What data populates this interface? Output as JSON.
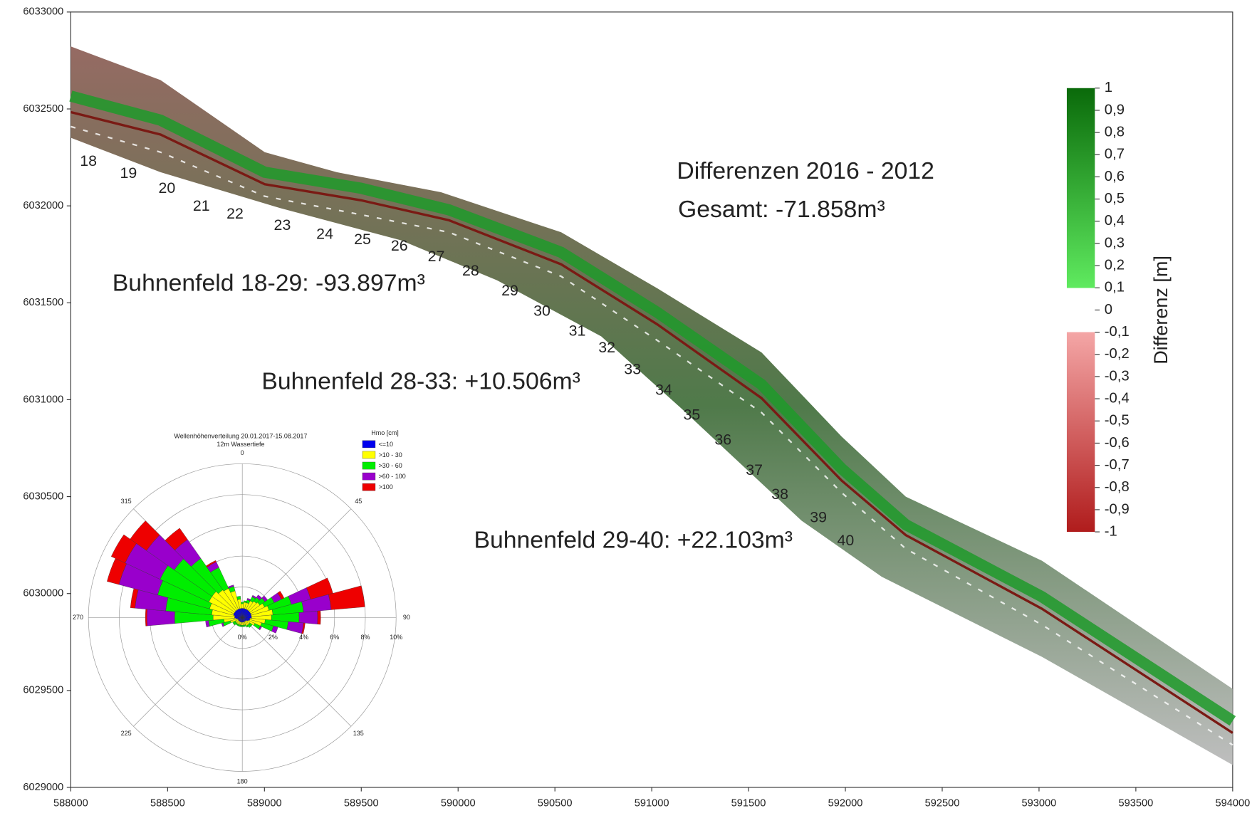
{
  "map": {
    "xlim": [
      588000,
      594000
    ],
    "ylim": [
      6029000,
      6033000
    ],
    "xticks": [
      588000,
      588500,
      589000,
      589500,
      590000,
      590500,
      591000,
      591500,
      592000,
      592500,
      593000,
      593500,
      594000
    ],
    "yticks": [
      6029000,
      6029500,
      6030000,
      6030500,
      6031000,
      6031500,
      6032000,
      6032500,
      6033000
    ],
    "title": "Differenzen 2016 - 2012",
    "total": "Gesamt: -71.858m³",
    "annotations": [
      "Buhnenfeld 18-29: -93.897m³",
      "Buhnenfeld 28-33: +10.506m³",
      "Buhnenfeld 29-40: +22.103m³"
    ],
    "groyne_labels": [
      18,
      19,
      20,
      21,
      22,
      23,
      24,
      25,
      26,
      27,
      28,
      29,
      30,
      31,
      32,
      33,
      34,
      35,
      36,
      37,
      38,
      39,
      40
    ],
    "colorbar": {
      "label": "Differenz [m]",
      "lim": [
        -1,
        1
      ],
      "ticks": [
        1,
        {
          "value": 0.9,
          "label": "0,9"
        },
        {
          "value": 0.8,
          "label": "0,8"
        },
        {
          "value": 0.7,
          "label": "0,7"
        },
        {
          "value": 0.6,
          "label": "0,6"
        },
        {
          "value": 0.5,
          "label": "0,5"
        },
        {
          "value": 0.4,
          "label": "0,4"
        },
        {
          "value": 0.3,
          "label": "0,3"
        },
        {
          "value": 0.2,
          "label": "0,2"
        },
        {
          "value": 0.1,
          "label": "0,1"
        },
        0,
        {
          "value": -0.1,
          "label": "-0,1"
        },
        {
          "value": -0.2,
          "label": "-0,2"
        },
        {
          "value": -0.3,
          "label": "-0,3"
        },
        {
          "value": -0.4,
          "label": "-0,4"
        },
        {
          "value": -0.5,
          "label": "-0,5"
        },
        {
          "value": -0.6,
          "label": "-0,6"
        },
        {
          "value": -0.7,
          "label": "-0,7"
        },
        {
          "value": -0.8,
          "label": "-0,8"
        },
        {
          "value": -0.9,
          "label": "-0,9"
        },
        -1
      ]
    }
  },
  "chart_data": {
    "type": "windrose",
    "title": "Wellenhöhenverteilung 20.01.2017-15.08.2017",
    "subtitle": "12m Wassertiefe",
    "legend_title": "Hmo [cm]",
    "directions": [
      0,
      10,
      20,
      30,
      40,
      50,
      60,
      70,
      80,
      90,
      100,
      110,
      120,
      130,
      140,
      150,
      160,
      170,
      180,
      190,
      200,
      210,
      220,
      230,
      240,
      250,
      260,
      270,
      280,
      290,
      300,
      310,
      320,
      330,
      340,
      350
    ],
    "direction_ticks": [
      0,
      45,
      90,
      135,
      180,
      225,
      270,
      315
    ],
    "rlim": [
      0,
      10
    ],
    "rticks": [
      {
        "value": 0,
        "label": "0%"
      },
      {
        "value": 2,
        "label": "2%"
      },
      {
        "value": 4,
        "label": "4%"
      },
      {
        "value": 6,
        "label": "6%"
      },
      {
        "value": 8,
        "label": "8%"
      },
      {
        "value": 10,
        "label": "10%"
      }
    ],
    "series": [
      {
        "name": "<=10",
        "color": "#0000ee",
        "values": [
          0.6,
          0.6,
          0.6,
          0.6,
          0.6,
          0.6,
          0.6,
          0.6,
          0.6,
          0.6,
          0.5,
          0.5,
          0.4,
          0.3,
          0.3,
          0.3,
          0.3,
          0.3,
          0.3,
          0.3,
          0.3,
          0.3,
          0.3,
          0.3,
          0.3,
          0.3,
          0.4,
          0.5,
          0.5,
          0.6,
          0.6,
          0.6,
          0.6,
          0.6,
          0.6,
          0.6
        ]
      },
      {
        "name": ">10 - 30",
        "color": "#ffff00",
        "values": [
          0.3,
          0.4,
          0.4,
          0.6,
          0.7,
          0.8,
          1.0,
          1.2,
          1.4,
          1.3,
          1.0,
          0.8,
          0.5,
          0.3,
          0.3,
          0.3,
          0.2,
          0.2,
          0.2,
          0.2,
          0.2,
          0.2,
          0.2,
          0.2,
          0.2,
          0.5,
          0.8,
          1.4,
          1.5,
          1.6,
          1.8,
          1.8,
          1.6,
          1.5,
          1.2,
          0.6
        ]
      },
      {
        "name": ">30 - 60",
        "color": "#00ee00",
        "values": [
          0.1,
          0.1,
          0.2,
          0.3,
          0.3,
          0.4,
          0.7,
          1.5,
          2.0,
          1.8,
          1.5,
          0.8,
          0.4,
          0.2,
          0.2,
          0.1,
          0.1,
          0.1,
          0.1,
          0.1,
          0.1,
          0.1,
          0.1,
          0.2,
          0.2,
          0.5,
          1.0,
          2.5,
          3.0,
          3.5,
          3.5,
          3.0,
          2.5,
          1.5,
          0.3,
          0.2
        ]
      },
      {
        "name": ">60 - 100",
        "color": "#9900cc",
        "values": [
          0,
          0,
          0.1,
          0.1,
          0.2,
          0.2,
          0.5,
          1.3,
          1.8,
          1.2,
          1.0,
          0.3,
          0.1,
          0,
          0,
          0,
          0,
          0,
          0,
          0,
          0,
          0,
          0,
          0,
          0,
          0.1,
          0.2,
          1.8,
          2.0,
          2.6,
          2.5,
          2.2,
          1.5,
          0.4,
          0.1,
          0
        ]
      },
      {
        "name": ">100",
        "color": "#ee0000",
        "values": [
          0,
          0,
          0,
          0,
          0,
          0,
          0.2,
          1.5,
          2.2,
          0.2,
          0.1,
          0,
          0,
          0,
          0,
          0,
          0,
          0,
          0,
          0,
          0,
          0,
          0,
          0,
          0,
          0,
          0,
          0.1,
          0.3,
          0.8,
          1.0,
          1.3,
          0.9,
          0.1,
          0,
          0
        ]
      }
    ]
  }
}
